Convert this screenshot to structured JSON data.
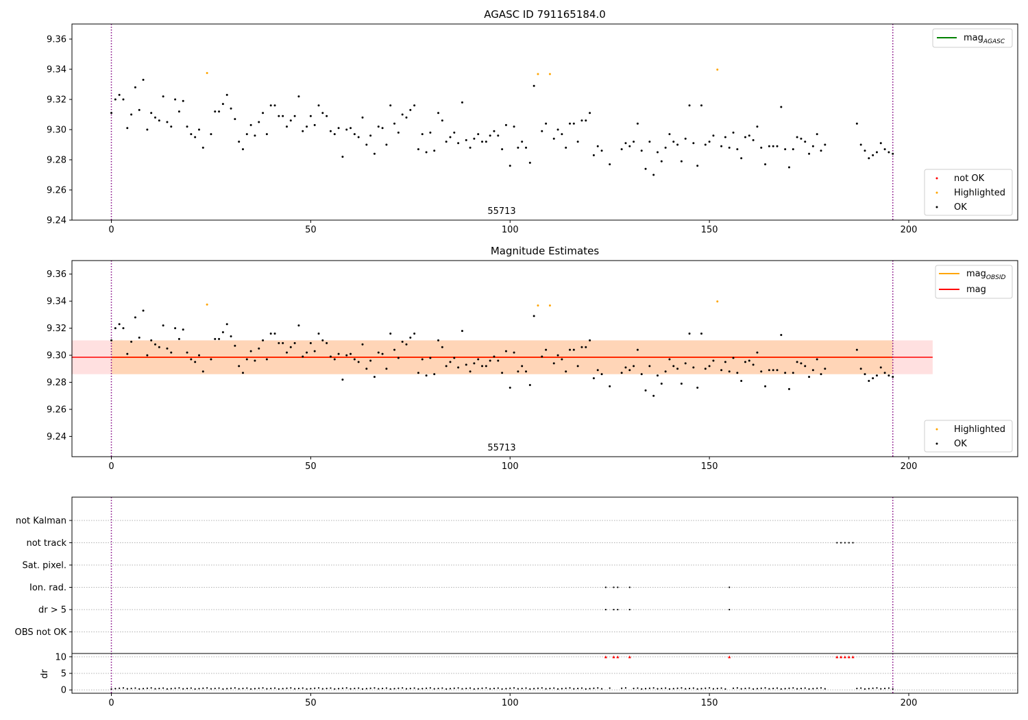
{
  "chart_data": [
    {
      "type": "scatter",
      "title": "AGASC ID 791165184.0",
      "annotation": "55713",
      "xlim": [
        -10,
        228
      ],
      "ylim": [
        9.24,
        9.37
      ],
      "xticks": [
        0,
        50,
        100,
        150,
        200
      ],
      "yticks": [
        "9.24",
        "9.26",
        "9.28",
        "9.30",
        "9.32",
        "9.34",
        "9.36"
      ],
      "vlines": [
        0,
        196
      ],
      "lines_legend": [
        {
          "label": "mag",
          "subscript": "AGASC",
          "color": "#008000"
        }
      ],
      "points_legend": [
        {
          "label": "not OK",
          "color": "#ff0000"
        },
        {
          "label": "Highlighted",
          "color": "#ffa500"
        },
        {
          "label": "OK",
          "color": "#000000"
        }
      ],
      "highlighted": [
        [
          24,
          9.3375
        ],
        [
          107,
          9.3368
        ],
        [
          110,
          9.3368
        ],
        [
          152,
          9.3398
        ]
      ],
      "ok": [
        [
          0,
          9.311
        ],
        [
          1,
          9.32
        ],
        [
          2,
          9.323
        ],
        [
          3,
          9.32
        ],
        [
          4,
          9.301
        ],
        [
          5,
          9.31
        ],
        [
          6,
          9.328
        ],
        [
          7,
          9.313
        ],
        [
          8,
          9.333
        ],
        [
          9,
          9.3
        ],
        [
          10,
          9.311
        ],
        [
          11,
          9.308
        ],
        [
          12,
          9.306
        ],
        [
          13,
          9.322
        ],
        [
          14,
          9.305
        ],
        [
          15,
          9.302
        ],
        [
          16,
          9.32
        ],
        [
          17,
          9.312
        ],
        [
          18,
          9.319
        ],
        [
          19,
          9.302
        ],
        [
          20,
          9.297
        ],
        [
          21,
          9.295
        ],
        [
          22,
          9.3
        ],
        [
          23,
          9.288
        ],
        [
          25,
          9.297
        ],
        [
          26,
          9.312
        ],
        [
          27,
          9.312
        ],
        [
          28,
          9.317
        ],
        [
          29,
          9.323
        ],
        [
          30,
          9.314
        ],
        [
          31,
          9.307
        ],
        [
          32,
          9.292
        ],
        [
          33,
          9.287
        ],
        [
          34,
          9.297
        ],
        [
          35,
          9.303
        ],
        [
          36,
          9.296
        ],
        [
          37,
          9.305
        ],
        [
          38,
          9.311
        ],
        [
          39,
          9.297
        ],
        [
          40,
          9.316
        ],
        [
          41,
          9.316
        ],
        [
          42,
          9.309
        ],
        [
          43,
          9.309
        ],
        [
          44,
          9.302
        ],
        [
          45,
          9.306
        ],
        [
          46,
          9.309
        ],
        [
          47,
          9.322
        ],
        [
          48,
          9.299
        ],
        [
          49,
          9.302
        ],
        [
          50,
          9.309
        ],
        [
          51,
          9.303
        ],
        [
          52,
          9.316
        ],
        [
          53,
          9.311
        ],
        [
          54,
          9.309
        ],
        [
          55,
          9.299
        ],
        [
          56,
          9.297
        ],
        [
          57,
          9.301
        ],
        [
          58,
          9.282
        ],
        [
          59,
          9.3
        ],
        [
          60,
          9.301
        ],
        [
          61,
          9.297
        ],
        [
          62,
          9.295
        ],
        [
          63,
          9.308
        ],
        [
          64,
          9.29
        ],
        [
          65,
          9.296
        ],
        [
          66,
          9.284
        ],
        [
          67,
          9.302
        ],
        [
          68,
          9.301
        ],
        [
          69,
          9.29
        ],
        [
          70,
          9.316
        ],
        [
          71,
          9.304
        ],
        [
          72,
          9.298
        ],
        [
          73,
          9.31
        ],
        [
          74,
          9.308
        ],
        [
          75,
          9.313
        ],
        [
          76,
          9.316
        ],
        [
          77,
          9.287
        ],
        [
          78,
          9.297
        ],
        [
          79,
          9.285
        ],
        [
          80,
          9.298
        ],
        [
          81,
          9.286
        ],
        [
          82,
          9.311
        ],
        [
          83,
          9.306
        ],
        [
          84,
          9.292
        ],
        [
          85,
          9.295
        ],
        [
          86,
          9.298
        ],
        [
          87,
          9.291
        ],
        [
          88,
          9.318
        ],
        [
          89,
          9.293
        ],
        [
          90,
          9.288
        ],
        [
          91,
          9.294
        ],
        [
          92,
          9.297
        ],
        [
          93,
          9.292
        ],
        [
          94,
          9.292
        ],
        [
          95,
          9.296
        ],
        [
          96,
          9.299
        ],
        [
          97,
          9.296
        ],
        [
          98,
          9.287
        ],
        [
          99,
          9.303
        ],
        [
          100,
          9.276
        ],
        [
          101,
          9.302
        ],
        [
          102,
          9.288
        ],
        [
          103,
          9.292
        ],
        [
          104,
          9.288
        ],
        [
          105,
          9.278
        ],
        [
          106,
          9.329
        ],
        [
          108,
          9.299
        ],
        [
          109,
          9.304
        ],
        [
          111,
          9.294
        ],
        [
          112,
          9.3
        ],
        [
          113,
          9.297
        ],
        [
          114,
          9.288
        ],
        [
          115,
          9.304
        ],
        [
          116,
          9.304
        ],
        [
          117,
          9.292
        ],
        [
          118,
          9.306
        ],
        [
          119,
          9.306
        ],
        [
          120,
          9.311
        ],
        [
          121,
          9.283
        ],
        [
          122,
          9.289
        ],
        [
          123,
          9.286
        ],
        [
          125,
          9.277
        ],
        [
          128,
          9.287
        ],
        [
          129,
          9.291
        ],
        [
          130,
          9.289
        ],
        [
          131,
          9.292
        ],
        [
          132,
          9.304
        ],
        [
          133,
          9.286
        ],
        [
          134,
          9.274
        ],
        [
          135,
          9.292
        ],
        [
          136,
          9.27
        ],
        [
          137,
          9.285
        ],
        [
          138,
          9.279
        ],
        [
          139,
          9.288
        ],
        [
          140,
          9.297
        ],
        [
          141,
          9.292
        ],
        [
          142,
          9.29
        ],
        [
          143,
          9.279
        ],
        [
          144,
          9.294
        ],
        [
          145,
          9.316
        ],
        [
          146,
          9.291
        ],
        [
          147,
          9.276
        ],
        [
          148,
          9.316
        ],
        [
          149,
          9.29
        ],
        [
          150,
          9.292
        ],
        [
          151,
          9.296
        ],
        [
          153,
          9.289
        ],
        [
          154,
          9.295
        ],
        [
          155,
          9.288
        ],
        [
          156,
          9.298
        ],
        [
          157,
          9.287
        ],
        [
          158,
          9.281
        ],
        [
          159,
          9.295
        ],
        [
          160,
          9.296
        ],
        [
          161,
          9.293
        ],
        [
          162,
          9.302
        ],
        [
          163,
          9.288
        ],
        [
          164,
          9.277
        ],
        [
          165,
          9.289
        ],
        [
          166,
          9.289
        ],
        [
          167,
          9.289
        ],
        [
          168,
          9.315
        ],
        [
          169,
          9.287
        ],
        [
          170,
          9.275
        ],
        [
          171,
          9.287
        ],
        [
          172,
          9.295
        ],
        [
          173,
          9.294
        ],
        [
          174,
          9.292
        ],
        [
          175,
          9.284
        ],
        [
          176,
          9.289
        ],
        [
          177,
          9.297
        ],
        [
          178,
          9.286
        ],
        [
          179,
          9.29
        ],
        [
          187,
          9.304
        ],
        [
          188,
          9.29
        ],
        [
          189,
          9.286
        ],
        [
          190,
          9.281
        ],
        [
          191,
          9.283
        ],
        [
          192,
          9.285
        ],
        [
          193,
          9.291
        ],
        [
          194,
          9.287
        ],
        [
          195,
          9.285
        ],
        [
          196,
          9.284
        ]
      ]
    },
    {
      "type": "scatter",
      "title": "Magnitude Estimates",
      "annotation": "55713",
      "xlim": [
        -10,
        228
      ],
      "ylim": [
        9.225,
        9.37
      ],
      "xticks": [
        0,
        50,
        100,
        150,
        200
      ],
      "yticks": [
        "9.24",
        "9.26",
        "9.28",
        "9.30",
        "9.32",
        "9.34",
        "9.36"
      ],
      "vlines": [
        0,
        196
      ],
      "mag": 9.2985,
      "mag_band": [
        9.286,
        9.311
      ],
      "mag_band_xrange": [
        -10,
        206
      ],
      "mag_obsid_band": [
        9.286,
        9.311
      ],
      "mag_obsid_xrange": [
        0,
        196
      ],
      "lines_legend": [
        {
          "label": "mag",
          "subscript": "OBSID",
          "color": "#ffa500"
        },
        {
          "label": "mag",
          "subscript": "",
          "color": "#ff0000"
        }
      ],
      "points_legend": [
        {
          "label": "Highlighted",
          "color": "#ffa500"
        },
        {
          "label": "OK",
          "color": "#000000"
        }
      ]
    },
    {
      "type": "scatter",
      "xlim": [
        -10,
        228
      ],
      "xticks": [
        0,
        50,
        100,
        150,
        200
      ],
      "vlines": [
        0,
        196
      ],
      "flag_rows": [
        "not Kalman",
        "not track",
        "Sat. pixel.",
        "Ion. rad.",
        "dr > 5",
        "OBS not OK"
      ],
      "flags": {
        "not track": [
          182,
          183,
          184,
          185,
          186
        ],
        "Ion. rad.": [
          124,
          126,
          127,
          130,
          155
        ],
        "dr > 5": [
          124,
          126,
          127,
          130,
          155
        ]
      },
      "dr": {
        "ylabel": "dr",
        "ylim": [
          -1,
          11
        ],
        "yticks": [
          "0",
          "5",
          "10"
        ],
        "clip_value": 10,
        "clipped_points": [
          124,
          126,
          127,
          130,
          155,
          182,
          183,
          184,
          185,
          186
        ],
        "typical_value": 0.3
      }
    }
  ]
}
